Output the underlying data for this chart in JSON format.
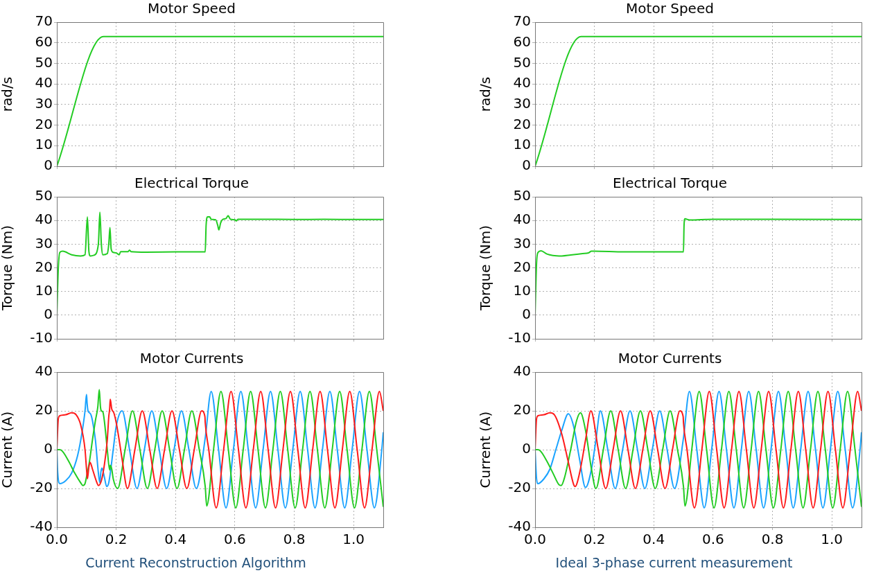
{
  "chart_data": [
    {
      "type": "line",
      "title": "Motor Speed",
      "ylabel": "rad/s",
      "xlim": [
        0,
        1.1
      ],
      "xticks": [
        0,
        0.2,
        0.4,
        0.6,
        0.8,
        1.0
      ],
      "ylim": [
        0,
        70
      ],
      "yticks": [
        0,
        10,
        20,
        30,
        40,
        50,
        60,
        70
      ],
      "grid": true,
      "legend": false,
      "tick_labels": "y",
      "series": [
        {
          "color": "#22cc22",
          "x": [
            0,
            0.157,
            1.1
          ],
          "values": [
            0,
            63,
            63
          ]
        }
      ]
    },
    {
      "type": "line",
      "title": "Motor Speed",
      "ylabel": "rad/s",
      "xlim": [
        0,
        1.1
      ],
      "xticks": [
        0,
        0.2,
        0.4,
        0.6,
        0.8,
        1.0
      ],
      "ylim": [
        0,
        70
      ],
      "yticks": [
        0,
        10,
        20,
        30,
        40,
        50,
        60,
        70
      ],
      "grid": true,
      "legend": false,
      "tick_labels": "y",
      "series": [
        {
          "color": "#22cc22",
          "x": [
            0,
            0.155,
            1.1
          ],
          "values": [
            0,
            63,
            63
          ]
        }
      ]
    },
    {
      "type": "line",
      "title": "Electrical Torque",
      "ylabel": "Torque (Nm)",
      "xlim": [
        0,
        1.1
      ],
      "xticks": [
        0,
        0.2,
        0.4,
        0.6,
        0.8,
        1.0
      ],
      "ylim": [
        -10,
        50
      ],
      "yticks": [
        -10,
        0,
        10,
        20,
        30,
        40,
        50
      ],
      "grid": true,
      "legend": false,
      "tick_labels": "y",
      "series": [
        {
          "color": "#22cc22",
          "x": [
            0,
            0.005,
            0.01,
            0.02,
            0.05,
            0.08,
            0.095,
            0.103,
            0.108,
            0.113,
            0.125,
            0.14,
            0.145,
            0.15,
            0.155,
            0.17,
            0.175,
            0.179,
            0.183,
            0.19,
            0.2,
            0.21,
            0.215,
            0.24,
            0.245,
            0.25,
            0.3,
            0.4,
            0.5,
            0.503,
            0.508,
            0.515,
            0.52,
            0.535,
            0.542,
            0.546,
            0.552,
            0.56,
            0.57,
            0.577,
            0.585,
            0.6,
            0.605,
            0.61,
            0.7,
            0.8,
            0.9,
            1.0,
            1.1
          ],
          "values": [
            0,
            20,
            26.5,
            27,
            25.5,
            25,
            25.5,
            41.5,
            27,
            25,
            25.3,
            30,
            43.5,
            30,
            25.5,
            26,
            30,
            37,
            28,
            26.5,
            26.3,
            25.5,
            26.8,
            26.8,
            27.5,
            26.8,
            26.6,
            26.7,
            26.7,
            38,
            41.5,
            41.5,
            40.5,
            40.3,
            38,
            36,
            39,
            40.5,
            40.8,
            42,
            40.5,
            40.3,
            39.8,
            40.5,
            40.5,
            40.4,
            40.5,
            40.4,
            40.4
          ]
        }
      ]
    },
    {
      "type": "line",
      "title": "Electrical Torque",
      "ylabel": "Torque (Nm)",
      "xlim": [
        0,
        1.1
      ],
      "xticks": [
        0,
        0.2,
        0.4,
        0.6,
        0.8,
        1.0
      ],
      "ylim": [
        -10,
        50
      ],
      "yticks": [
        -10,
        0,
        10,
        20,
        30,
        40,
        50
      ],
      "grid": true,
      "legend": false,
      "tick_labels": "y",
      "series": [
        {
          "color": "#22cc22",
          "x": [
            0,
            0.005,
            0.01,
            0.02,
            0.04,
            0.06,
            0.09,
            0.12,
            0.16,
            0.18,
            0.19,
            0.2,
            0.3,
            0.4,
            0.5,
            0.502,
            0.505,
            0.52,
            0.6,
            0.8,
            1.1
          ],
          "values": [
            0,
            22,
            26.5,
            27.2,
            25.8,
            25.2,
            25,
            25.4,
            26,
            26.3,
            27,
            27,
            26.7,
            26.7,
            26.7,
            38,
            40.7,
            40.2,
            40.5,
            40.5,
            40.4
          ]
        }
      ]
    },
    {
      "type": "line",
      "title": "Motor Currents",
      "ylabel": "Current (A)",
      "annotations": [
        "Current Reconstruction Algorithm"
      ],
      "xlim": [
        0,
        1.1
      ],
      "xticks": [
        {
          "value": 0,
          "label": "0.0"
        },
        {
          "value": 0.2,
          "label": "0.2"
        },
        {
          "value": 0.4,
          "label": "0.4"
        },
        {
          "value": 0.6,
          "label": "0.6"
        },
        {
          "value": 0.8,
          "label": "0.8"
        },
        {
          "value": 1.0,
          "label": "1.0"
        }
      ],
      "ylim": [
        -40,
        40
      ],
      "yticks": [
        -40,
        -20,
        0,
        20,
        40
      ],
      "grid": true,
      "legend": false,
      "series": [
        {
          "color": "#ff1a1a",
          "x": [
            0,
            0.005,
            0.01,
            0.03,
            0.05,
            0.065,
            0.08,
            0.095,
            0.1,
            0.103,
            0.108,
            0.112,
            0.12,
            0.135,
            0.14,
            0.15,
            0.16,
            0.17,
            0.175,
            0.178,
            0.18,
            0.185,
            0.192,
            0.2,
            0.21,
            0.22,
            0.238,
            0.263,
            0.288,
            0.313,
            0.338,
            0.363,
            0.388,
            0.413,
            0.438,
            0.463,
            0.488,
            0.499,
            0.5,
            0.512,
            0.537,
            0.562,
            0.587,
            0.612,
            0.637,
            0.662,
            0.687,
            0.712,
            0.737,
            0.762,
            0.787,
            0.812,
            0.837,
            0.862,
            0.887,
            0.912,
            0.937,
            0.962,
            0.987,
            1.012,
            1.037,
            1.062,
            1.087,
            1.1
          ],
          "values": [
            0,
            16,
            17.5,
            18,
            19,
            18,
            13,
            0,
            -10,
            -15,
            -9,
            -6.5,
            -10,
            -17,
            -18.5,
            -16,
            -8,
            5,
            17,
            21,
            26,
            21,
            19,
            14,
            5,
            -5,
            -20,
            0,
            20,
            0,
            -20,
            0,
            20,
            0,
            -20,
            0,
            20,
            17,
            14,
            0,
            -30,
            0,
            30,
            0,
            -30,
            0,
            30,
            0,
            -30,
            0,
            30,
            0,
            -30,
            0,
            30,
            0,
            -30,
            0,
            30,
            0,
            -30,
            0,
            30,
            20
          ]
        },
        {
          "color": "#22cc22",
          "x": [
            0,
            0.01,
            0.02,
            0.04,
            0.06,
            0.08,
            0.088,
            0.095,
            0.1,
            0.11,
            0.12,
            0.13,
            0.138,
            0.143,
            0.147,
            0.15,
            0.155,
            0.16,
            0.17,
            0.178,
            0.18,
            0.185,
            0.19,
            0.205,
            0.23,
            0.255,
            0.28,
            0.305,
            0.33,
            0.355,
            0.38,
            0.405,
            0.43,
            0.455,
            0.48,
            0.5,
            0.505,
            0.528,
            0.553,
            0.578,
            0.603,
            0.628,
            0.653,
            0.678,
            0.703,
            0.728,
            0.753,
            0.778,
            0.803,
            0.828,
            0.853,
            0.878,
            0.903,
            0.928,
            0.953,
            0.978,
            1.003,
            1.028,
            1.053,
            1.078,
            1.1
          ],
          "values": [
            0,
            0,
            -1,
            -6,
            -12,
            -17,
            -18.5,
            -17.5,
            -14,
            -6,
            5,
            15,
            22,
            31,
            22,
            20,
            19.5,
            15,
            0,
            -10.5,
            -8,
            -10,
            -15,
            -20,
            0,
            20,
            0,
            -20,
            0,
            20,
            0,
            -20,
            0,
            20,
            0,
            -19,
            -29,
            0,
            30,
            0,
            -30,
            0,
            30,
            0,
            -30,
            0,
            30,
            0,
            -30,
            0,
            30,
            0,
            -30,
            0,
            30,
            0,
            -30,
            0,
            30,
            0,
            -29.5
          ]
        },
        {
          "color": "#1aa3ff",
          "x": [
            0,
            0.003,
            0.01,
            0.03,
            0.05,
            0.07,
            0.085,
            0.095,
            0.1,
            0.102,
            0.105,
            0.11,
            0.115,
            0.12,
            0.13,
            0.14,
            0.145,
            0.148,
            0.152,
            0.16,
            0.168,
            0.175,
            0.19,
            0.2,
            0.22,
            0.245,
            0.27,
            0.295,
            0.32,
            0.345,
            0.37,
            0.395,
            0.42,
            0.445,
            0.47,
            0.5,
            0.52,
            0.545,
            0.57,
            0.595,
            0.62,
            0.645,
            0.67,
            0.695,
            0.72,
            0.745,
            0.77,
            0.795,
            0.82,
            0.845,
            0.87,
            0.895,
            0.92,
            0.945,
            0.97,
            0.995,
            1.02,
            1.045,
            1.07,
            1.095,
            1.1
          ],
          "values": [
            0,
            -12,
            -17.5,
            -16,
            -12,
            -3,
            9,
            20,
            28.5,
            24,
            20,
            19,
            18,
            15,
            5,
            -12,
            -17,
            -12,
            -9.5,
            -14,
            -19,
            -17,
            0,
            12,
            20,
            0,
            -20,
            0,
            20,
            0,
            -20,
            0,
            20,
            0,
            -20,
            6,
            30,
            0,
            -30,
            0,
            30,
            0,
            -30,
            0,
            30,
            0,
            -30,
            0,
            30,
            0,
            -30,
            0,
            30,
            0,
            -30,
            0,
            30,
            0,
            -30,
            0,
            9
          ]
        }
      ]
    },
    {
      "type": "line",
      "title": "Motor Currents",
      "ylabel": "Current (A)",
      "annotations": [
        "Ideal 3-phase current measurement"
      ],
      "xlim": [
        0,
        1.1
      ],
      "xticks": [
        {
          "value": 0,
          "label": "0.0"
        },
        {
          "value": 0.2,
          "label": "0.2"
        },
        {
          "value": 0.4,
          "label": "0.4"
        },
        {
          "value": 0.6,
          "label": "0.6"
        },
        {
          "value": 0.8,
          "label": "0.8"
        },
        {
          "value": 1.0,
          "label": "1.0"
        }
      ],
      "ylim": [
        -40,
        40
      ],
      "yticks": [
        -40,
        -20,
        0,
        20,
        40
      ],
      "grid": true,
      "legend": false,
      "series": [
        {
          "color": "#ff1a1a",
          "x": [
            0,
            0.005,
            0.01,
            0.03,
            0.05,
            0.065,
            0.09,
            0.11,
            0.13,
            0.135,
            0.15,
            0.17,
            0.188,
            0.213,
            0.238,
            0.263,
            0.288,
            0.313,
            0.338,
            0.363,
            0.388,
            0.413,
            0.438,
            0.463,
            0.488,
            0.499,
            0.5,
            0.512,
            0.537,
            0.562,
            0.587,
            0.612,
            0.637,
            0.662,
            0.687,
            0.712,
            0.737,
            0.762,
            0.787,
            0.812,
            0.837,
            0.862,
            0.887,
            0.912,
            0.937,
            0.962,
            0.987,
            1.012,
            1.037,
            1.062,
            1.087,
            1.1
          ],
          "values": [
            0,
            16,
            17.5,
            18,
            19,
            18,
            8,
            -5,
            -18,
            -19,
            -12,
            5,
            20,
            0,
            -20,
            0,
            20,
            0,
            -20,
            0,
            20,
            0,
            -20,
            0,
            20,
            17,
            14,
            0,
            -30,
            0,
            30,
            0,
            -30,
            0,
            30,
            0,
            -30,
            0,
            30,
            0,
            -30,
            0,
            30,
            0,
            -30,
            0,
            30,
            0,
            -30,
            0,
            30,
            20
          ]
        },
        {
          "color": "#22cc22",
          "x": [
            0,
            0.01,
            0.02,
            0.04,
            0.06,
            0.08,
            0.088,
            0.1,
            0.12,
            0.14,
            0.153,
            0.17,
            0.19,
            0.205,
            0.23,
            0.255,
            0.28,
            0.305,
            0.33,
            0.355,
            0.38,
            0.405,
            0.43,
            0.455,
            0.48,
            0.5,
            0.505,
            0.528,
            0.553,
            0.578,
            0.603,
            0.628,
            0.653,
            0.678,
            0.703,
            0.728,
            0.753,
            0.778,
            0.803,
            0.828,
            0.853,
            0.878,
            0.903,
            0.928,
            0.953,
            0.978,
            1.003,
            1.028,
            1.053,
            1.078,
            1.1
          ],
          "values": [
            0,
            0,
            -1,
            -6,
            -12,
            -18,
            -18.5,
            -14,
            0,
            15,
            19,
            10,
            -10,
            -20,
            0,
            20,
            0,
            -20,
            0,
            20,
            0,
            -20,
            0,
            20,
            0,
            -19,
            -29,
            0,
            30,
            0,
            -30,
            0,
            30,
            0,
            -30,
            0,
            30,
            0,
            -30,
            0,
            30,
            0,
            -30,
            0,
            30,
            0,
            -30,
            0,
            30,
            0,
            -29.5
          ]
        },
        {
          "color": "#1aa3ff",
          "x": [
            0,
            0.005,
            0.01,
            0.03,
            0.05,
            0.07,
            0.09,
            0.112,
            0.13,
            0.15,
            0.17,
            0.19,
            0.205,
            0.22,
            0.245,
            0.27,
            0.295,
            0.32,
            0.345,
            0.37,
            0.395,
            0.42,
            0.445,
            0.47,
            0.5,
            0.52,
            0.545,
            0.57,
            0.595,
            0.62,
            0.645,
            0.67,
            0.695,
            0.72,
            0.745,
            0.77,
            0.795,
            0.82,
            0.845,
            0.87,
            0.895,
            0.92,
            0.945,
            0.97,
            0.995,
            1.02,
            1.045,
            1.07,
            1.095,
            1.1
          ],
          "values": [
            0,
            -15,
            -17.5,
            -15,
            -10,
            0,
            10,
            18.5,
            12,
            -5,
            -19.5,
            -10,
            5,
            20,
            0,
            -20,
            0,
            20,
            0,
            -20,
            0,
            20,
            0,
            -20,
            6,
            30,
            0,
            -30,
            0,
            30,
            0,
            -30,
            0,
            30,
            0,
            -30,
            0,
            30,
            0,
            -30,
            0,
            30,
            0,
            -30,
            0,
            30,
            0,
            -30,
            0,
            9
          ]
        }
      ]
    }
  ]
}
